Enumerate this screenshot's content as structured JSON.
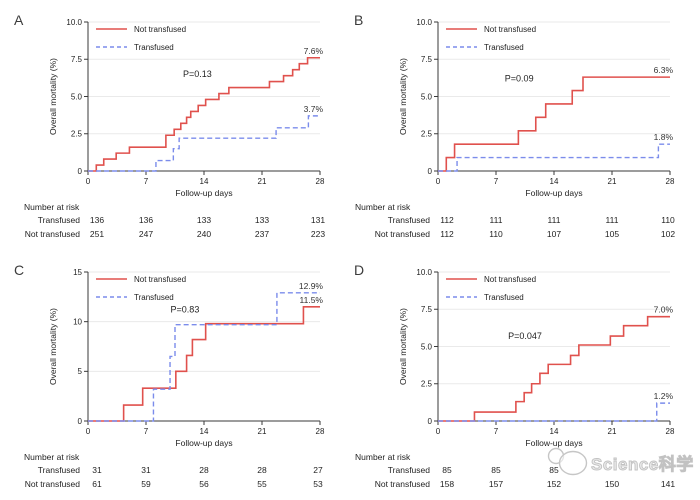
{
  "colors": {
    "not_transfused": "#e0514d",
    "transfused": "#7b8ceb",
    "grid": "#eaeaea",
    "axis": "#3a3a3a",
    "text": "#1f1f1f",
    "end_label": "#333333",
    "watermark": "#c2c2c2"
  },
  "watermark": {
    "text": "Science科学",
    "logo_icon": "overlapping-circles-logo"
  },
  "chart_data": [
    {
      "panel": "A",
      "type": "line",
      "step": true,
      "xlabel": "Follow-up days",
      "ylabel": "Overall mortality (%)",
      "xlim": [
        0,
        28
      ],
      "ylim": [
        0,
        10
      ],
      "xticks": [
        0,
        7,
        14,
        21,
        28
      ],
      "yticks": [
        {
          "v": 0,
          "label": "0"
        },
        {
          "v": 2.5,
          "label": "2.5"
        },
        {
          "v": 5,
          "label": "5.0"
        },
        {
          "v": 7.5,
          "label": "7.5"
        },
        {
          "v": 10,
          "label": "10.0"
        }
      ],
      "grid": "horizontal",
      "legend_position": "top-left",
      "p_label": {
        "text": "P=0.13",
        "day": 13.2,
        "pct": 6.5
      },
      "series": [
        {
          "name": "Not transfused",
          "color": "#e0514d",
          "dashed": false,
          "end_label": "7.6%",
          "points": [
            [
              0,
              0
            ],
            [
              1,
              0.4
            ],
            [
              1.9,
              0.8
            ],
            [
              3.4,
              1.2
            ],
            [
              5,
              1.6
            ],
            [
              9.4,
              2.4
            ],
            [
              10.4,
              2.8
            ],
            [
              11.2,
              3.2
            ],
            [
              11.9,
              3.6
            ],
            [
              12.4,
              4.0
            ],
            [
              13.3,
              4.4
            ],
            [
              14.2,
              4.8
            ],
            [
              15.8,
              5.2
            ],
            [
              17,
              5.6
            ],
            [
              21.9,
              6.0
            ],
            [
              23.6,
              6.4
            ],
            [
              24.7,
              6.8
            ],
            [
              25.5,
              7.2
            ],
            [
              26.5,
              7.6
            ],
            [
              28,
              7.6
            ]
          ]
        },
        {
          "name": "Transfused",
          "color": "#7b8ceb",
          "dashed": true,
          "end_label": "3.7%",
          "points": [
            [
              0,
              0
            ],
            [
              8.2,
              0.7
            ],
            [
              10.3,
              1.5
            ],
            [
              11,
              2.2
            ],
            [
              22.7,
              2.9
            ],
            [
              26.6,
              3.7
            ],
            [
              28,
              3.7
            ]
          ]
        }
      ],
      "number_at_risk": {
        "header": "Number at risk",
        "rows": [
          {
            "label": "Transfused",
            "values": [
              "136",
              "136",
              "133",
              "133",
              "131"
            ]
          },
          {
            "label": "Not transfused",
            "values": [
              "251",
              "247",
              "240",
              "237",
              "223"
            ]
          }
        ]
      }
    },
    {
      "panel": "B",
      "type": "line",
      "step": true,
      "xlabel": "Follow-up days",
      "ylabel": "Overall mortality (%)",
      "xlim": [
        0,
        28
      ],
      "ylim": [
        0,
        10
      ],
      "xticks": [
        0,
        7,
        14,
        21,
        28
      ],
      "yticks": [
        {
          "v": 0,
          "label": "0"
        },
        {
          "v": 2.5,
          "label": "2.5"
        },
        {
          "v": 5,
          "label": "5.0"
        },
        {
          "v": 7.5,
          "label": "7.5"
        },
        {
          "v": 10,
          "label": "10.0"
        }
      ],
      "grid": "horizontal",
      "legend_position": "top-left",
      "p_label": {
        "text": "P=0.09",
        "day": 9.8,
        "pct": 6.2
      },
      "series": [
        {
          "name": "Not transfused",
          "color": "#e0514d",
          "dashed": false,
          "end_label": "6.3%",
          "points": [
            [
              0,
              0
            ],
            [
              1,
              0.9
            ],
            [
              2,
              1.8
            ],
            [
              9.7,
              2.7
            ],
            [
              11.8,
              3.6
            ],
            [
              13,
              4.5
            ],
            [
              16.2,
              5.4
            ],
            [
              17.5,
              6.3
            ],
            [
              28,
              6.3
            ]
          ]
        },
        {
          "name": "Transfused",
          "color": "#7b8ceb",
          "dashed": true,
          "end_label": "1.8%",
          "points": [
            [
              0,
              0
            ],
            [
              2.3,
              0.9
            ],
            [
              26.6,
              1.8
            ],
            [
              28,
              1.8
            ]
          ]
        }
      ],
      "number_at_risk": {
        "header": "Number at risk",
        "rows": [
          {
            "label": "Transfused",
            "values": [
              "112",
              "111",
              "111",
              "111",
              "110"
            ]
          },
          {
            "label": "Not transfused",
            "values": [
              "112",
              "110",
              "107",
              "105",
              "102"
            ]
          }
        ]
      }
    },
    {
      "panel": "C",
      "type": "line",
      "step": true,
      "xlabel": "Follow-up days",
      "ylabel": "Overall mortality (%)",
      "xlim": [
        0,
        28
      ],
      "ylim": [
        0,
        15
      ],
      "xticks": [
        0,
        7,
        14,
        21,
        28
      ],
      "yticks": [
        {
          "v": 0,
          "label": "0"
        },
        {
          "v": 5,
          "label": "5"
        },
        {
          "v": 10,
          "label": "10"
        },
        {
          "v": 15,
          "label": "15"
        }
      ],
      "grid": "horizontal",
      "legend_position": "top-left",
      "p_label": {
        "text": "P=0.83",
        "day": 11.7,
        "pct": 11.2
      },
      "series": [
        {
          "name": "Not transfused",
          "color": "#e0514d",
          "dashed": false,
          "end_label": "11.5%",
          "points": [
            [
              0,
              0
            ],
            [
              4.3,
              1.6
            ],
            [
              6.6,
              3.3
            ],
            [
              10.6,
              5.0
            ],
            [
              11.9,
              6.6
            ],
            [
              12.6,
              8.2
            ],
            [
              14.2,
              9.8
            ],
            [
              26,
              11.5
            ],
            [
              28,
              11.5
            ]
          ]
        },
        {
          "name": "Transfused",
          "color": "#7b8ceb",
          "dashed": true,
          "end_label": "12.9%",
          "points": [
            [
              0,
              0
            ],
            [
              7.9,
              3.2
            ],
            [
              9.9,
              6.5
            ],
            [
              10.5,
              9.7
            ],
            [
              22.8,
              12.9
            ],
            [
              28,
              12.9
            ]
          ]
        }
      ],
      "number_at_risk": {
        "header": "Number at risk",
        "rows": [
          {
            "label": "Transfused",
            "values": [
              "31",
              "31",
              "28",
              "28",
              "27"
            ]
          },
          {
            "label": "Not transfused",
            "values": [
              "61",
              "59",
              "56",
              "55",
              "53"
            ]
          }
        ]
      }
    },
    {
      "panel": "D",
      "type": "line",
      "step": true,
      "xlabel": "Follow-up days",
      "ylabel": "Overall mortality (%)",
      "xlim": [
        0,
        28
      ],
      "ylim": [
        0,
        10
      ],
      "xticks": [
        0,
        7,
        14,
        21,
        28
      ],
      "yticks": [
        {
          "v": 0,
          "label": "0"
        },
        {
          "v": 2.5,
          "label": "2.5"
        },
        {
          "v": 5,
          "label": "5.0"
        },
        {
          "v": 7.5,
          "label": "7.5"
        },
        {
          "v": 10,
          "label": "10.0"
        }
      ],
      "grid": "horizontal",
      "legend_position": "top-left",
      "p_label": {
        "text": "P=0.047",
        "day": 10.5,
        "pct": 5.7
      },
      "series": [
        {
          "name": "Not transfused",
          "color": "#e0514d",
          "dashed": false,
          "end_label": "7.0%",
          "points": [
            [
              0,
              0
            ],
            [
              4.4,
              0.6
            ],
            [
              9.4,
              1.3
            ],
            [
              10.4,
              1.9
            ],
            [
              11.3,
              2.5
            ],
            [
              12.3,
              3.2
            ],
            [
              13.3,
              3.8
            ],
            [
              16,
              4.4
            ],
            [
              17,
              5.1
            ],
            [
              20.8,
              5.7
            ],
            [
              22.4,
              6.4
            ],
            [
              25.3,
              7.0
            ],
            [
              28,
              7.0
            ]
          ]
        },
        {
          "name": "Transfused",
          "color": "#7b8ceb",
          "dashed": true,
          "end_label": "1.2%",
          "points": [
            [
              0,
              0
            ],
            [
              26.4,
              1.2
            ],
            [
              28,
              1.2
            ]
          ]
        }
      ],
      "number_at_risk": {
        "header": "Number at risk",
        "rows": [
          {
            "label": "Transfused",
            "values": [
              "85",
              "85",
              "85",
              "",
              ""
            ]
          },
          {
            "label": "Not transfused",
            "values": [
              "158",
              "157",
              "152",
              "150",
              "141"
            ]
          }
        ]
      }
    }
  ]
}
